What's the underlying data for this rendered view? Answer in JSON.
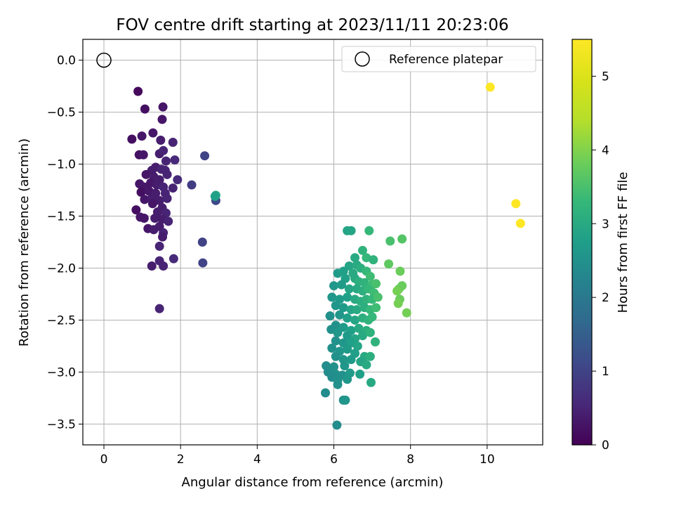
{
  "chart_data": {
    "type": "scatter",
    "title": "FOV centre drift starting at 2023/11/11 20:23:06",
    "xlabel": "Angular distance from reference (arcmin)",
    "ylabel": "Rotation from reference (arcmin)",
    "xlim": [
      -0.55,
      11.45
    ],
    "ylim": [
      -3.7,
      0.2
    ],
    "xticks": [
      "0",
      "2",
      "4",
      "6",
      "8",
      "10"
    ],
    "xtick_values": [
      0,
      2,
      4,
      6,
      8,
      10
    ],
    "yticks": [
      "0.0",
      "−0.5",
      "−1.0",
      "−1.5",
      "−2.0",
      "−2.5",
      "−3.0",
      "−3.5"
    ],
    "ytick_values": [
      0,
      -0.5,
      -1.0,
      -1.5,
      -2.0,
      -2.5,
      -3.0,
      -3.5
    ],
    "grid": true,
    "legend": {
      "position": "top-right",
      "entries": [
        "Reference platepar"
      ]
    },
    "reference_point": {
      "x": 0,
      "y": 0
    },
    "colorbar": {
      "label": "Hours from first FF file",
      "range": [
        0,
        5.5
      ],
      "ticks": [
        "0",
        "1",
        "2",
        "3",
        "4",
        "5"
      ],
      "tick_values": [
        0,
        1,
        2,
        3,
        4,
        5
      ],
      "colormap": "viridis"
    },
    "points": [
      [
        0.89,
        -0.3,
        0.1
      ],
      [
        1.07,
        -0.47,
        0.2
      ],
      [
        1.54,
        -0.45,
        0.3
      ],
      [
        1.52,
        -0.57,
        0.3
      ],
      [
        0.73,
        -0.76,
        0.2
      ],
      [
        0.99,
        -0.73,
        0.3
      ],
      [
        1.28,
        -0.7,
        0.3
      ],
      [
        1.48,
        -0.77,
        0.4
      ],
      [
        1.8,
        -0.79,
        0.5
      ],
      [
        0.92,
        -0.91,
        0.2
      ],
      [
        1.03,
        -0.91,
        0.3
      ],
      [
        1.45,
        -0.9,
        0.4
      ],
      [
        1.55,
        -0.87,
        0.5
      ],
      [
        1.62,
        -0.97,
        0.5
      ],
      [
        1.85,
        -0.96,
        0.6
      ],
      [
        1.25,
        -1.06,
        0.4
      ],
      [
        1.35,
        -1.03,
        0.4
      ],
      [
        1.5,
        -1.05,
        0.5
      ],
      [
        1.6,
        -1.06,
        0.5
      ],
      [
        1.1,
        -1.1,
        0.3
      ],
      [
        1.3,
        -1.12,
        0.4
      ],
      [
        1.45,
        -1.15,
        0.4
      ],
      [
        1.65,
        -1.1,
        0.5
      ],
      [
        1.92,
        -1.15,
        0.6
      ],
      [
        0.93,
        -1.19,
        0.3
      ],
      [
        1.05,
        -1.22,
        0.3
      ],
      [
        1.22,
        -1.18,
        0.3
      ],
      [
        1.38,
        -1.2,
        0.4
      ],
      [
        1.55,
        -1.22,
        0.5
      ],
      [
        1.8,
        -1.23,
        0.5
      ],
      [
        0.97,
        -1.27,
        0.2
      ],
      [
        1.18,
        -1.26,
        0.3
      ],
      [
        1.35,
        -1.28,
        0.4
      ],
      [
        1.6,
        -1.28,
        0.5
      ],
      [
        2.29,
        -1.2,
        0.9
      ],
      [
        1.06,
        -1.34,
        0.3
      ],
      [
        1.25,
        -1.33,
        0.4
      ],
      [
        1.45,
        -1.35,
        0.4
      ],
      [
        1.65,
        -1.33,
        0.5
      ],
      [
        1.27,
        -1.38,
        0.3
      ],
      [
        1.52,
        -1.42,
        0.4
      ],
      [
        0.84,
        -1.44,
        0.2
      ],
      [
        1.4,
        -1.46,
        0.4
      ],
      [
        1.62,
        -1.47,
        0.5
      ],
      [
        0.95,
        -1.51,
        0.3
      ],
      [
        1.05,
        -1.52,
        0.3
      ],
      [
        1.33,
        -1.52,
        0.4
      ],
      [
        1.52,
        -1.53,
        0.4
      ],
      [
        1.68,
        -1.55,
        0.5
      ],
      [
        1.15,
        -1.62,
        0.3
      ],
      [
        1.3,
        -1.63,
        0.4
      ],
      [
        1.45,
        -1.6,
        0.4
      ],
      [
        1.55,
        -1.66,
        0.5
      ],
      [
        1.53,
        -1.7,
        0.4
      ],
      [
        1.45,
        -1.79,
        0.5
      ],
      [
        1.82,
        -1.91,
        0.6
      ],
      [
        1.25,
        -1.98,
        0.4
      ],
      [
        1.45,
        -1.93,
        0.5
      ],
      [
        1.55,
        -1.98,
        0.5
      ],
      [
        1.45,
        -2.39,
        0.5
      ],
      [
        2.63,
        -0.92,
        1.0
      ],
      [
        2.57,
        -1.75,
        1.0
      ],
      [
        2.58,
        -1.95,
        1.0
      ],
      [
        2.92,
        -1.35,
        1.1
      ],
      [
        2.92,
        -1.3,
        2.9
      ],
      [
        2.9,
        -1.31,
        2.8
      ],
      [
        6.35,
        -1.64,
        2.9
      ],
      [
        6.45,
        -1.64,
        2.9
      ],
      [
        6.92,
        -1.64,
        3.3
      ],
      [
        6.75,
        -1.83,
        3.2
      ],
      [
        6.55,
        -1.9,
        3.0
      ],
      [
        6.85,
        -1.9,
        3.3
      ],
      [
        7.03,
        -1.92,
        3.2
      ],
      [
        6.4,
        -1.98,
        2.9
      ],
      [
        6.6,
        -1.97,
        3.0
      ],
      [
        6.7,
        -2.0,
        3.1
      ],
      [
        6.1,
        -2.05,
        2.7
      ],
      [
        6.25,
        -2.03,
        2.8
      ],
      [
        6.5,
        -2.05,
        3.0
      ],
      [
        6.85,
        -2.03,
        3.3
      ],
      [
        6.95,
        -2.08,
        3.4
      ],
      [
        6.3,
        -2.1,
        2.8
      ],
      [
        6.55,
        -2.1,
        3.0
      ],
      [
        6.65,
        -2.13,
        3.1
      ],
      [
        6.8,
        -2.14,
        3.2
      ],
      [
        7.0,
        -2.16,
        3.4
      ],
      [
        7.1,
        -2.15,
        3.5
      ],
      [
        6.0,
        -2.17,
        2.6
      ],
      [
        6.2,
        -2.16,
        2.7
      ],
      [
        6.4,
        -2.2,
        2.9
      ],
      [
        6.6,
        -2.2,
        3.0
      ],
      [
        6.75,
        -2.22,
        3.1
      ],
      [
        6.9,
        -2.2,
        3.3
      ],
      [
        7.05,
        -2.24,
        3.4
      ],
      [
        5.95,
        -2.28,
        2.6
      ],
      [
        6.15,
        -2.3,
        2.7
      ],
      [
        6.35,
        -2.28,
        2.8
      ],
      [
        6.55,
        -2.3,
        3.0
      ],
      [
        6.7,
        -2.32,
        3.1
      ],
      [
        6.85,
        -2.3,
        3.2
      ],
      [
        7.0,
        -2.3,
        3.3
      ],
      [
        7.15,
        -2.28,
        3.5
      ],
      [
        6.05,
        -2.36,
        2.6
      ],
      [
        6.25,
        -2.38,
        2.7
      ],
      [
        6.45,
        -2.4,
        2.9
      ],
      [
        6.6,
        -2.4,
        3.0
      ],
      [
        6.8,
        -2.38,
        3.1
      ],
      [
        6.95,
        -2.4,
        3.3
      ],
      [
        7.1,
        -2.38,
        3.4
      ],
      [
        5.9,
        -2.46,
        2.5
      ],
      [
        6.15,
        -2.45,
        2.6
      ],
      [
        6.35,
        -2.48,
        2.8
      ],
      [
        6.55,
        -2.5,
        2.9
      ],
      [
        6.75,
        -2.48,
        3.1
      ],
      [
        6.9,
        -2.5,
        3.2
      ],
      [
        7.0,
        -2.47,
        3.3
      ],
      [
        6.05,
        -2.55,
        2.5
      ],
      [
        6.25,
        -2.57,
        2.7
      ],
      [
        6.45,
        -2.6,
        2.8
      ],
      [
        6.65,
        -2.58,
        3.0
      ],
      [
        6.85,
        -2.6,
        3.1
      ],
      [
        5.93,
        -2.59,
        2.5
      ],
      [
        6.1,
        -2.62,
        2.6
      ],
      [
        6.35,
        -2.65,
        2.7
      ],
      [
        6.55,
        -2.68,
        2.9
      ],
      [
        6.75,
        -2.65,
        3.0
      ],
      [
        6.95,
        -2.62,
        3.2
      ],
      [
        6.05,
        -2.7,
        2.5
      ],
      [
        6.25,
        -2.72,
        2.6
      ],
      [
        6.45,
        -2.72,
        2.8
      ],
      [
        6.62,
        -2.75,
        2.9
      ],
      [
        7.08,
        -2.71,
        3.2
      ],
      [
        5.95,
        -2.77,
        2.5
      ],
      [
        6.15,
        -2.8,
        2.6
      ],
      [
        6.35,
        -2.78,
        2.7
      ],
      [
        6.55,
        -2.82,
        2.8
      ],
      [
        6.8,
        -2.85,
        3.0
      ],
      [
        6.95,
        -2.85,
        3.1
      ],
      [
        6.05,
        -2.85,
        2.5
      ],
      [
        6.25,
        -2.88,
        2.6
      ],
      [
        6.45,
        -2.88,
        2.7
      ],
      [
        6.7,
        -2.9,
        2.9
      ],
      [
        6.85,
        -2.93,
        3.0
      ],
      [
        5.8,
        -2.94,
        2.4
      ],
      [
        6.0,
        -2.95,
        2.5
      ],
      [
        6.28,
        -2.94,
        2.6
      ],
      [
        5.85,
        -3.0,
        2.4
      ],
      [
        6.05,
        -3.02,
        2.5
      ],
      [
        6.22,
        -3.03,
        2.5
      ],
      [
        6.42,
        -3.01,
        2.7
      ],
      [
        6.68,
        -3.02,
        2.8
      ],
      [
        5.95,
        -3.05,
        2.4
      ],
      [
        6.1,
        -3.08,
        2.5
      ],
      [
        6.35,
        -3.07,
        2.6
      ],
      [
        6.1,
        -3.12,
        2.5
      ],
      [
        6.97,
        -3.1,
        3.0
      ],
      [
        5.78,
        -3.2,
        2.4
      ],
      [
        6.25,
        -3.27,
        2.5
      ],
      [
        6.3,
        -3.27,
        2.6
      ],
      [
        6.08,
        -3.51,
        2.4
      ],
      [
        7.47,
        -1.74,
        3.5
      ],
      [
        7.78,
        -1.72,
        3.6
      ],
      [
        7.43,
        -1.96,
        3.7
      ],
      [
        7.73,
        -2.03,
        3.8
      ],
      [
        7.7,
        -2.2,
        3.8
      ],
      [
        7.78,
        -2.17,
        3.8
      ],
      [
        7.65,
        -2.22,
        3.9
      ],
      [
        7.72,
        -2.3,
        3.8
      ],
      [
        7.68,
        -2.34,
        3.9
      ],
      [
        7.9,
        -2.43,
        3.9
      ],
      [
        10.08,
        -0.26,
        5.5
      ],
      [
        10.75,
        -1.38,
        5.5
      ],
      [
        10.87,
        -1.57,
        5.5
      ]
    ]
  }
}
